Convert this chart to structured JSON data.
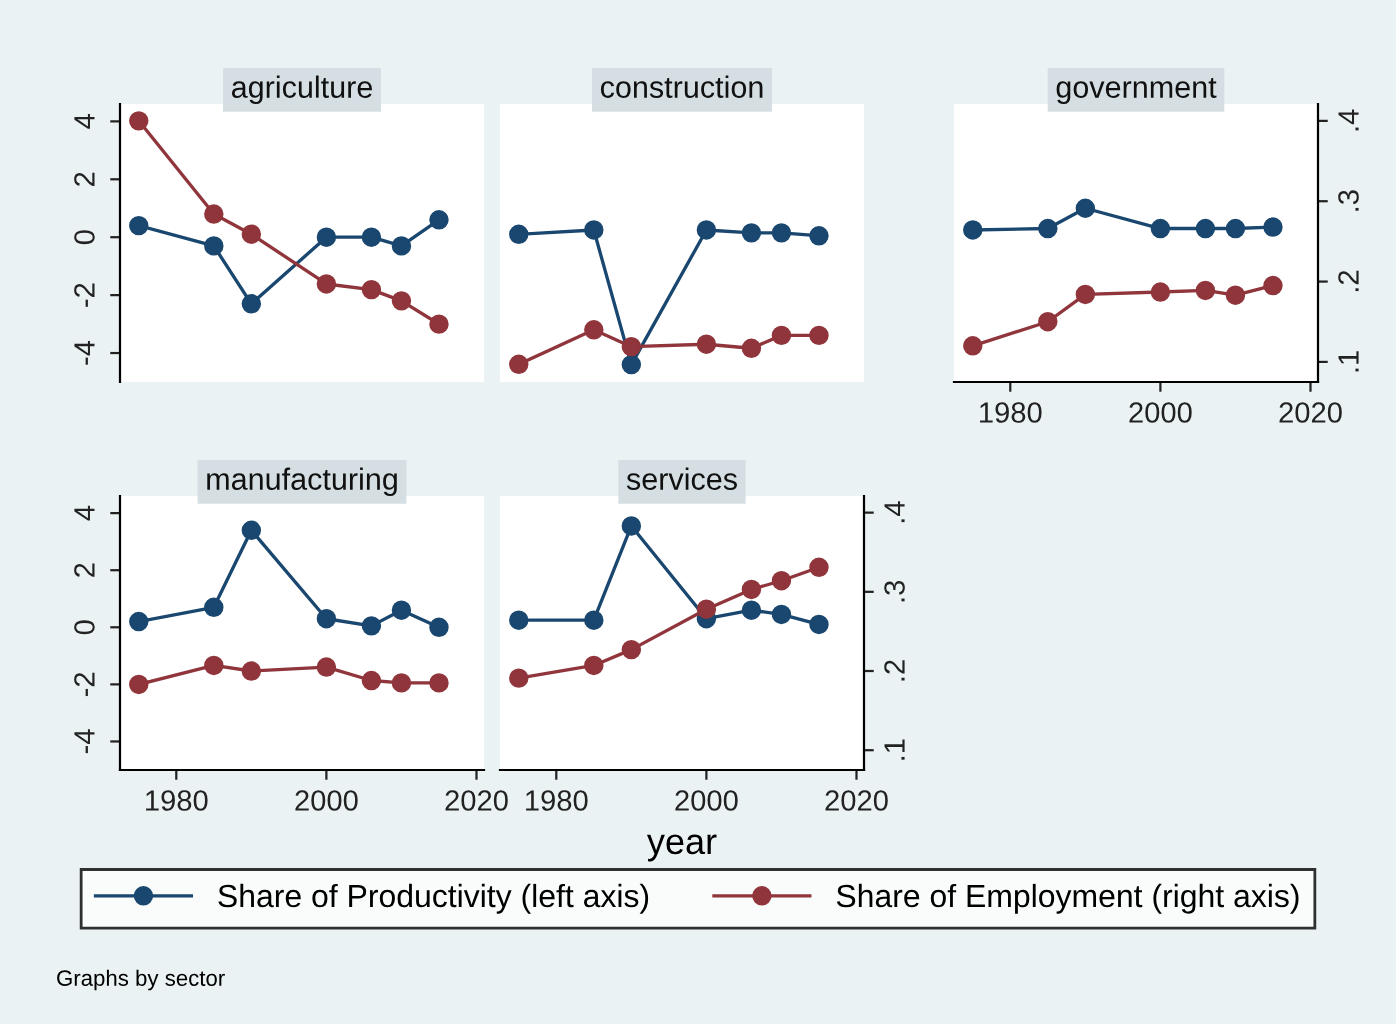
{
  "chart_data": [
    {
      "type": "line",
      "title": "agriculture",
      "x": [
        1975,
        1985,
        1990,
        2000,
        2006,
        2010,
        2015
      ],
      "xlim": [
        1972.5,
        2021
      ],
      "ylim": [
        -5,
        4.6
      ],
      "yticks": [
        -4,
        -2,
        0,
        2,
        4
      ],
      "y2lim": [
        0.075,
        0.421
      ],
      "marker": "circle",
      "line_style": "solid",
      "tick_labels": "y",
      "series": [
        {
          "color": "#1a476f",
          "values": [
            0.4,
            -0.3,
            -2.3,
            0.0,
            0.0,
            -0.3,
            0.6
          ]
        },
        {
          "color": "#90353b",
          "axis": "y2",
          "values": [
            0.4,
            0.284,
            0.259,
            0.197,
            0.19,
            0.176,
            0.147
          ]
        }
      ]
    },
    {
      "type": "line",
      "title": "construction",
      "x": [
        1975,
        1985,
        1990,
        2000,
        2006,
        2010,
        2015
      ],
      "xlim": [
        1972.5,
        2021
      ],
      "ylim": [
        -5,
        4.6
      ],
      "y2lim": [
        0.075,
        0.421
      ],
      "marker": "circle",
      "line_style": "solid",
      "tick_labels": false,
      "series": [
        {
          "color": "#1a476f",
          "values": [
            0.1,
            0.25,
            -4.4,
            0.25,
            0.15,
            0.15,
            0.05
          ]
        },
        {
          "color": "#90353b",
          "axis": "y2",
          "values": [
            0.097,
            0.14,
            0.119,
            0.122,
            0.117,
            0.133,
            0.133
          ]
        }
      ]
    },
    {
      "type": "line",
      "title": "government",
      "x": [
        1975,
        1985,
        1990,
        2000,
        2006,
        2010,
        2015
      ],
      "xlim": [
        1972.5,
        2021
      ],
      "xticks": [
        1980,
        2000,
        2020
      ],
      "ylim": [
        -5,
        4.6
      ],
      "y2lim": [
        0.075,
        0.421
      ],
      "y2ticks": [
        {
          "value": 0.1,
          "label": ".1"
        },
        {
          "value": 0.2,
          "label": ".2"
        },
        {
          "value": 0.3,
          "label": ".3"
        },
        {
          "value": 0.4,
          "label": ".4"
        }
      ],
      "marker": "circle",
      "line_style": "solid",
      "tick_labels": [
        "x",
        "y2"
      ],
      "series": [
        {
          "color": "#1a476f",
          "values": [
            0.25,
            0.3,
            1.0,
            0.3,
            0.3,
            0.3,
            0.35
          ]
        },
        {
          "color": "#90353b",
          "axis": "y2",
          "values": [
            0.12,
            0.15,
            0.184,
            0.187,
            0.189,
            0.183,
            0.195
          ]
        }
      ]
    },
    {
      "type": "line",
      "title": "manufacturing",
      "x": [
        1975,
        1985,
        1990,
        2000,
        2006,
        2010,
        2015
      ],
      "xlim": [
        1972.5,
        2021
      ],
      "xticks": [
        1980,
        2000,
        2020
      ],
      "ylim": [
        -5,
        4.6
      ],
      "yticks": [
        -4,
        -2,
        0,
        2,
        4
      ],
      "y2lim": [
        0.075,
        0.421
      ],
      "marker": "circle",
      "line_style": "solid",
      "tick_labels": [
        "x",
        "y"
      ],
      "series": [
        {
          "color": "#1a476f",
          "values": [
            0.2,
            0.7,
            3.4,
            0.3,
            0.05,
            0.6,
            0.0
          ]
        },
        {
          "color": "#90353b",
          "axis": "y2",
          "values": [
            0.183,
            0.207,
            0.2,
            0.205,
            0.188,
            0.185,
            0.185
          ]
        }
      ]
    },
    {
      "type": "line",
      "title": "services",
      "xlabel": "year",
      "x": [
        1975,
        1985,
        1990,
        2000,
        2006,
        2010,
        2015
      ],
      "xlim": [
        1972.5,
        2021
      ],
      "xticks": [
        1980,
        2000,
        2020
      ],
      "ylim": [
        -5,
        4.6
      ],
      "y2lim": [
        0.075,
        0.421
      ],
      "y2ticks": [
        {
          "value": 0.1,
          "label": ".1"
        },
        {
          "value": 0.2,
          "label": ".2"
        },
        {
          "value": 0.3,
          "label": ".3"
        },
        {
          "value": 0.4,
          "label": ".4"
        }
      ],
      "marker": "circle",
      "line_style": "solid",
      "tick_labels": [
        "x",
        "y2"
      ],
      "legend": "bottom",
      "annotations": [
        "Graphs by sector"
      ],
      "series": [
        {
          "name": "Share of Productivity (left axis)",
          "color": "#1a476f",
          "values": [
            0.25,
            0.25,
            3.55,
            0.3,
            0.6,
            0.45,
            0.1
          ]
        },
        {
          "name": "Share of Employment (right axis)",
          "color": "#90353b",
          "axis": "y2",
          "values": [
            0.191,
            0.207,
            0.227,
            0.278,
            0.303,
            0.314,
            0.331
          ]
        }
      ]
    }
  ]
}
